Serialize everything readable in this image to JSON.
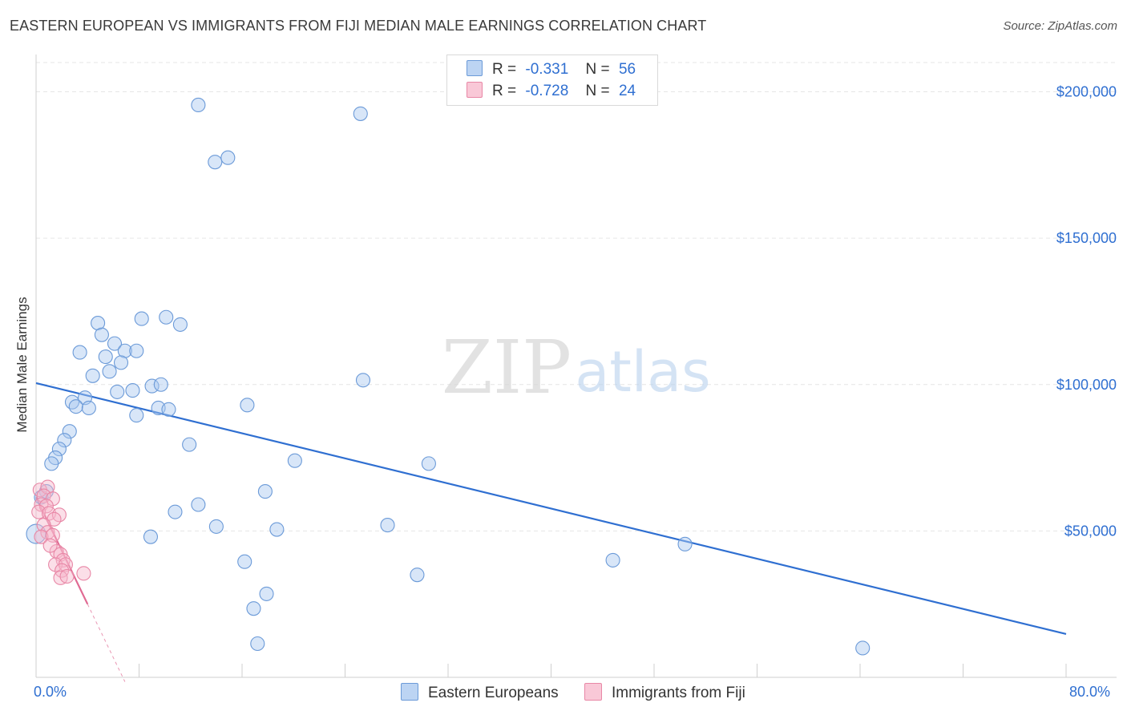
{
  "header": {
    "title": "EASTERN EUROPEAN VS IMMIGRANTS FROM FIJI MEDIAN MALE EARNINGS CORRELATION CHART",
    "source": "Source: ZipAtlas.com"
  },
  "legend": {
    "rows": [
      {
        "r_label": "R =",
        "r_value": "-0.331",
        "n_label": "N =",
        "n_value": "56"
      },
      {
        "r_label": "R =",
        "r_value": "-0.728",
        "n_label": "N =",
        "n_value": "24"
      }
    ]
  },
  "watermark": {
    "zip": "ZIP",
    "atlas": "atlas"
  },
  "colors": {
    "blue_fill": "#a9c8f0",
    "blue_stroke": "#6b9ad8",
    "blue_line": "#2f6fd1",
    "pink_fill": "#f6b8cb",
    "pink_stroke": "#e887a6",
    "pink_line": "#e06a93",
    "tick_label": "#2f6fd1"
  },
  "chart_data": {
    "type": "scatter",
    "title": "EASTERN EUROPEAN VS IMMIGRANTS FROM FIJI MEDIAN MALE EARNINGS CORRELATION CHART",
    "xlabel": "",
    "ylabel": "Median Male Earnings",
    "xlim": [
      0,
      80
    ],
    "ylim": [
      0,
      210000
    ],
    "x_tick_labels": {
      "left": "0.0%",
      "right": "80.0%"
    },
    "y_ticks": [
      {
        "value": 50000,
        "label": "$50,000"
      },
      {
        "value": 100000,
        "label": "$100,000"
      },
      {
        "value": 150000,
        "label": "$150,000"
      },
      {
        "value": 200000,
        "label": "$200,000"
      }
    ],
    "series": [
      {
        "name": "Eastern Europeans",
        "color_key": "blue",
        "trend": {
          "x": [
            0,
            80
          ],
          "y": [
            100500,
            14800
          ]
        },
        "points": [
          [
            12.6,
            195500
          ],
          [
            25.2,
            192500
          ],
          [
            13.9,
            176000
          ],
          [
            14.9,
            177500
          ],
          [
            4.8,
            121000
          ],
          [
            8.2,
            122500
          ],
          [
            10.1,
            123000
          ],
          [
            11.2,
            120500
          ],
          [
            3.4,
            111000
          ],
          [
            5.1,
            117000
          ],
          [
            6.1,
            114000
          ],
          [
            6.9,
            111500
          ],
          [
            5.4,
            109500
          ],
          [
            6.6,
            107500
          ],
          [
            7.8,
            111500
          ],
          [
            5.7,
            104500
          ],
          [
            4.4,
            103000
          ],
          [
            9.0,
            99500
          ],
          [
            9.7,
            100000
          ],
          [
            25.4,
            101500
          ],
          [
            7.5,
            98000
          ],
          [
            6.3,
            97500
          ],
          [
            2.8,
            94000
          ],
          [
            3.8,
            95500
          ],
          [
            3.1,
            92500
          ],
          [
            4.1,
            92000
          ],
          [
            9.5,
            92000
          ],
          [
            10.3,
            91500
          ],
          [
            7.8,
            89500
          ],
          [
            16.4,
            93000
          ],
          [
            2.6,
            84000
          ],
          [
            2.2,
            81000
          ],
          [
            1.8,
            78000
          ],
          [
            1.5,
            75000
          ],
          [
            1.2,
            73000
          ],
          [
            11.9,
            79500
          ],
          [
            20.1,
            74000
          ],
          [
            30.5,
            73000
          ],
          [
            0.8,
            63500
          ],
          [
            17.8,
            63500
          ],
          [
            12.6,
            59000
          ],
          [
            10.8,
            56500
          ],
          [
            14.0,
            51500
          ],
          [
            18.7,
            50500
          ],
          [
            27.3,
            52000
          ],
          [
            8.9,
            48000
          ],
          [
            0.0,
            49000
          ],
          [
            16.2,
            39500
          ],
          [
            44.8,
            40000
          ],
          [
            50.4,
            45500
          ],
          [
            29.6,
            35000
          ],
          [
            17.9,
            28500
          ],
          [
            16.9,
            23500
          ],
          [
            17.2,
            11500
          ],
          [
            64.2,
            10000
          ],
          [
            0.4,
            61500
          ]
        ]
      },
      {
        "name": "Immigrants from Fiji",
        "color_key": "pink",
        "trend": {
          "x": [
            0,
            4.0
          ],
          "y": [
            61500,
            25000
          ]
        },
        "trend_ext": {
          "x": [
            4.0,
            6.9
          ],
          "y": [
            25000,
            -1500
          ]
        },
        "points": [
          [
            0.3,
            64000
          ],
          [
            0.9,
            65000
          ],
          [
            0.6,
            62000
          ],
          [
            1.3,
            61000
          ],
          [
            0.4,
            59000
          ],
          [
            0.8,
            58500
          ],
          [
            0.2,
            56500
          ],
          [
            1.0,
            56000
          ],
          [
            1.8,
            55500
          ],
          [
            1.4,
            54000
          ],
          [
            0.6,
            52000
          ],
          [
            0.9,
            49500
          ],
          [
            0.4,
            48000
          ],
          [
            1.3,
            48500
          ],
          [
            1.6,
            43000
          ],
          [
            1.9,
            42000
          ],
          [
            2.1,
            40000
          ],
          [
            1.5,
            38500
          ],
          [
            2.3,
            38500
          ],
          [
            2.0,
            36500
          ],
          [
            3.7,
            35500
          ],
          [
            1.9,
            34000
          ],
          [
            2.4,
            34500
          ],
          [
            1.1,
            45000
          ]
        ]
      }
    ]
  },
  "bottom_legend": {
    "items": [
      {
        "label": "Eastern Europeans"
      },
      {
        "label": "Immigrants from Fiji"
      }
    ]
  }
}
